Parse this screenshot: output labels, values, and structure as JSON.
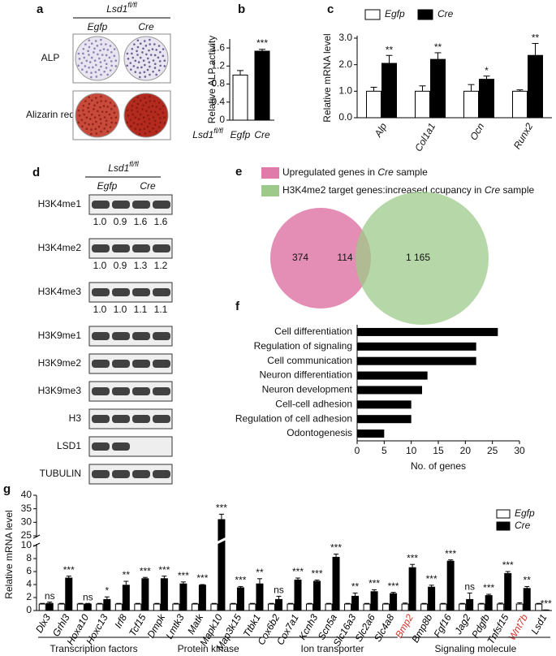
{
  "chart_data": [
    {
      "type": "image-grid",
      "label": "a",
      "genotype": {
        "text": "Lsd1",
        "sup": "fl/fl"
      },
      "columns": [
        "Egfp",
        "Cre"
      ],
      "rows": [
        "ALP",
        "Alizarin red"
      ]
    },
    {
      "type": "bar",
      "label": "b",
      "ylabel": "Relative ALP activity",
      "genotype": {
        "text": "Lsd1",
        "sup": "fl/fl"
      },
      "categories": [
        "Egfp",
        "Cre"
      ],
      "values": [
        1.0,
        1.53
      ],
      "errors": [
        0.1,
        0.04
      ],
      "colors": [
        "#ffffff",
        "#000000"
      ],
      "annotations": [
        null,
        "***"
      ],
      "ylim": [
        0,
        1.8
      ],
      "yticks": [
        0,
        0.4,
        0.8,
        1.2,
        1.6
      ]
    },
    {
      "type": "grouped-bar",
      "label": "c",
      "ylabel": "Relative mRNA level",
      "categories": [
        "Alp",
        "Col1a1",
        "Ocn",
        "Runx2"
      ],
      "series": [
        {
          "name": "Egfp",
          "color": "#ffffff",
          "values": [
            1.0,
            1.0,
            1.0,
            1.0
          ],
          "errors": [
            0.15,
            0.2,
            0.25,
            0.05
          ]
        },
        {
          "name": "Cre",
          "color": "#000000",
          "values": [
            2.05,
            2.2,
            1.45,
            2.35
          ],
          "errors": [
            0.3,
            0.25,
            0.12,
            0.45
          ],
          "annotations": [
            "**",
            "**",
            "*",
            "**"
          ]
        }
      ],
      "ylim": [
        0,
        3
      ],
      "yticks": [
        {
          "value": 0,
          "label": "0.0"
        },
        {
          "value": 1,
          "label": "1.0"
        },
        {
          "value": 2,
          "label": "2.0"
        },
        {
          "value": 3,
          "label": "3.0"
        }
      ]
    },
    {
      "type": "blot",
      "label": "d",
      "genotype": {
        "text": "Lsd1",
        "sup": "fl/fl"
      },
      "columns": [
        "Egfp",
        "Cre"
      ],
      "rows": [
        {
          "name": "H3K4me1",
          "quant": [
            "1.0",
            "0.9",
            "1.6",
            "1.6"
          ]
        },
        {
          "name": "H3K4me2",
          "quant": [
            "1.0",
            "0.9",
            "1.3",
            "1.2"
          ]
        },
        {
          "name": "H3K4me3",
          "quant": [
            "1.0",
            "1.0",
            "1.1",
            "1.1"
          ]
        },
        {
          "name": "H3K9me1"
        },
        {
          "name": "H3K9me2"
        },
        {
          "name": "H3K9me3"
        },
        {
          "name": "H3"
        },
        {
          "name": "LSD1"
        },
        {
          "name": "TUBULIN"
        }
      ]
    },
    {
      "type": "venn",
      "label": "e",
      "sets": [
        {
          "name": [
            "Upregulated genes in ",
            "Cre",
            " sample"
          ],
          "color": "#e07aa8"
        },
        {
          "name": [
            "H3K4me2 target genes:increased ccupancy in ",
            "Cre",
            " sample"
          ],
          "color": "#9dc98a"
        }
      ],
      "values": [
        374,
        114,
        1165
      ],
      "value_labels": [
        "374",
        "114",
        "1 165"
      ]
    },
    {
      "type": "hbar",
      "label": "f",
      "xlabel": "No. of genes",
      "categories": [
        "Cell differentiation",
        "Regulation of signaling",
        "Cell communication",
        "Neuron differentiation",
        "Neuron development",
        "Cell-cell adhesion",
        "Regulation of cell adhesion",
        "Odontogenesis"
      ],
      "values": [
        26,
        22,
        22,
        13,
        12,
        10,
        10,
        5
      ],
      "color": "#000000",
      "xlim": [
        0,
        30
      ],
      "xticks": [
        0,
        5,
        10,
        15,
        20,
        25,
        30
      ]
    },
    {
      "type": "broken-bar",
      "label": "g",
      "ylabel": "Relative mRNA level",
      "categories": [
        "Dlx3",
        "Grhl3",
        "Hoxa10",
        "Hoxc13",
        "Irf8",
        "Tcf15",
        "Dmpk",
        "Lmtk3",
        "Matk",
        "Mapk10",
        "Map3k15",
        "Ttbk1",
        "Cox6b2",
        "Cox7a1",
        "Kcnh3",
        "Scn5a",
        "Slc16a3",
        "Slc2a6",
        "Slc4a8",
        "Bmp2",
        "Bmp8b",
        "Fgf16",
        "Jag2",
        "Pdgfb",
        "Tnfsf15",
        "Wnt7b",
        "Lsd1"
      ],
      "category_colors": [
        "#000",
        "#000",
        "#000",
        "#000",
        "#000",
        "#000",
        "#000",
        "#000",
        "#000",
        "#000",
        "#000",
        "#000",
        "#000",
        "#000",
        "#000",
        "#000",
        "#000",
        "#000",
        "#000",
        "#d9342b",
        "#000",
        "#000",
        "#000",
        "#000",
        "#000",
        "#d9342b",
        "#000"
      ],
      "series": [
        {
          "name": "Egfp",
          "color": "#ffffff",
          "values": [
            1,
            1,
            1,
            1,
            1,
            1,
            1,
            1,
            1,
            1,
            1,
            1,
            1,
            1,
            1,
            1,
            1,
            1,
            1,
            1,
            1,
            1,
            1,
            1,
            1,
            1,
            1
          ],
          "errors": [
            0.1,
            0.1,
            0.1,
            0.1,
            0.1,
            0.1,
            0.1,
            0.1,
            0.1,
            0.1,
            0.1,
            0.1,
            0.1,
            0.1,
            0.1,
            0.1,
            0.1,
            0.1,
            0.1,
            0.15,
            0.1,
            0.1,
            0.1,
            0.1,
            0.15,
            0.2,
            0.1
          ]
        },
        {
          "name": "Cre",
          "color": "#000000",
          "values": [
            1.1,
            5.0,
            1.0,
            1.7,
            3.9,
            4.9,
            4.9,
            4.1,
            3.9,
            31,
            3.5,
            4.1,
            1.7,
            4.7,
            4.5,
            8.2,
            2.2,
            2.9,
            2.6,
            6.6,
            3.6,
            7.6,
            1.7,
            2.3,
            5.7,
            3.4,
            0.05
          ],
          "errors": [
            0.2,
            0.3,
            0.1,
            0.4,
            0.6,
            0.2,
            0.4,
            0.3,
            0.1,
            2,
            0.2,
            0.8,
            0.5,
            0.3,
            0.2,
            0.5,
            0.5,
            0.3,
            0.2,
            0.5,
            0.3,
            0.2,
            1.0,
            0.2,
            0.3,
            0.3,
            0.05
          ],
          "annotations": [
            "ns",
            "***",
            "ns",
            "*",
            "**",
            "***",
            "***",
            "***",
            "***",
            "***",
            "***",
            "**",
            "ns",
            "***",
            "***",
            "***",
            "**",
            "***",
            "***",
            "***",
            "***",
            "***",
            "ns",
            "***",
            "***",
            "**",
            "***"
          ]
        }
      ],
      "ylim": [
        0,
        10
      ],
      "yticks": [
        0,
        2,
        4,
        6,
        8,
        10
      ],
      "y2lim": [
        25,
        40
      ],
      "y2ticks": [
        25,
        30,
        35,
        40
      ],
      "groups": [
        {
          "name": "Transcription factors",
          "from": 0,
          "to": 5
        },
        {
          "name": "Protein kinase",
          "from": 6,
          "to": 11
        },
        {
          "name": "Ion transporter",
          "from": 12,
          "to": 18
        },
        {
          "name": "Signaling molecule",
          "from": 19,
          "to": 26
        }
      ]
    }
  ]
}
